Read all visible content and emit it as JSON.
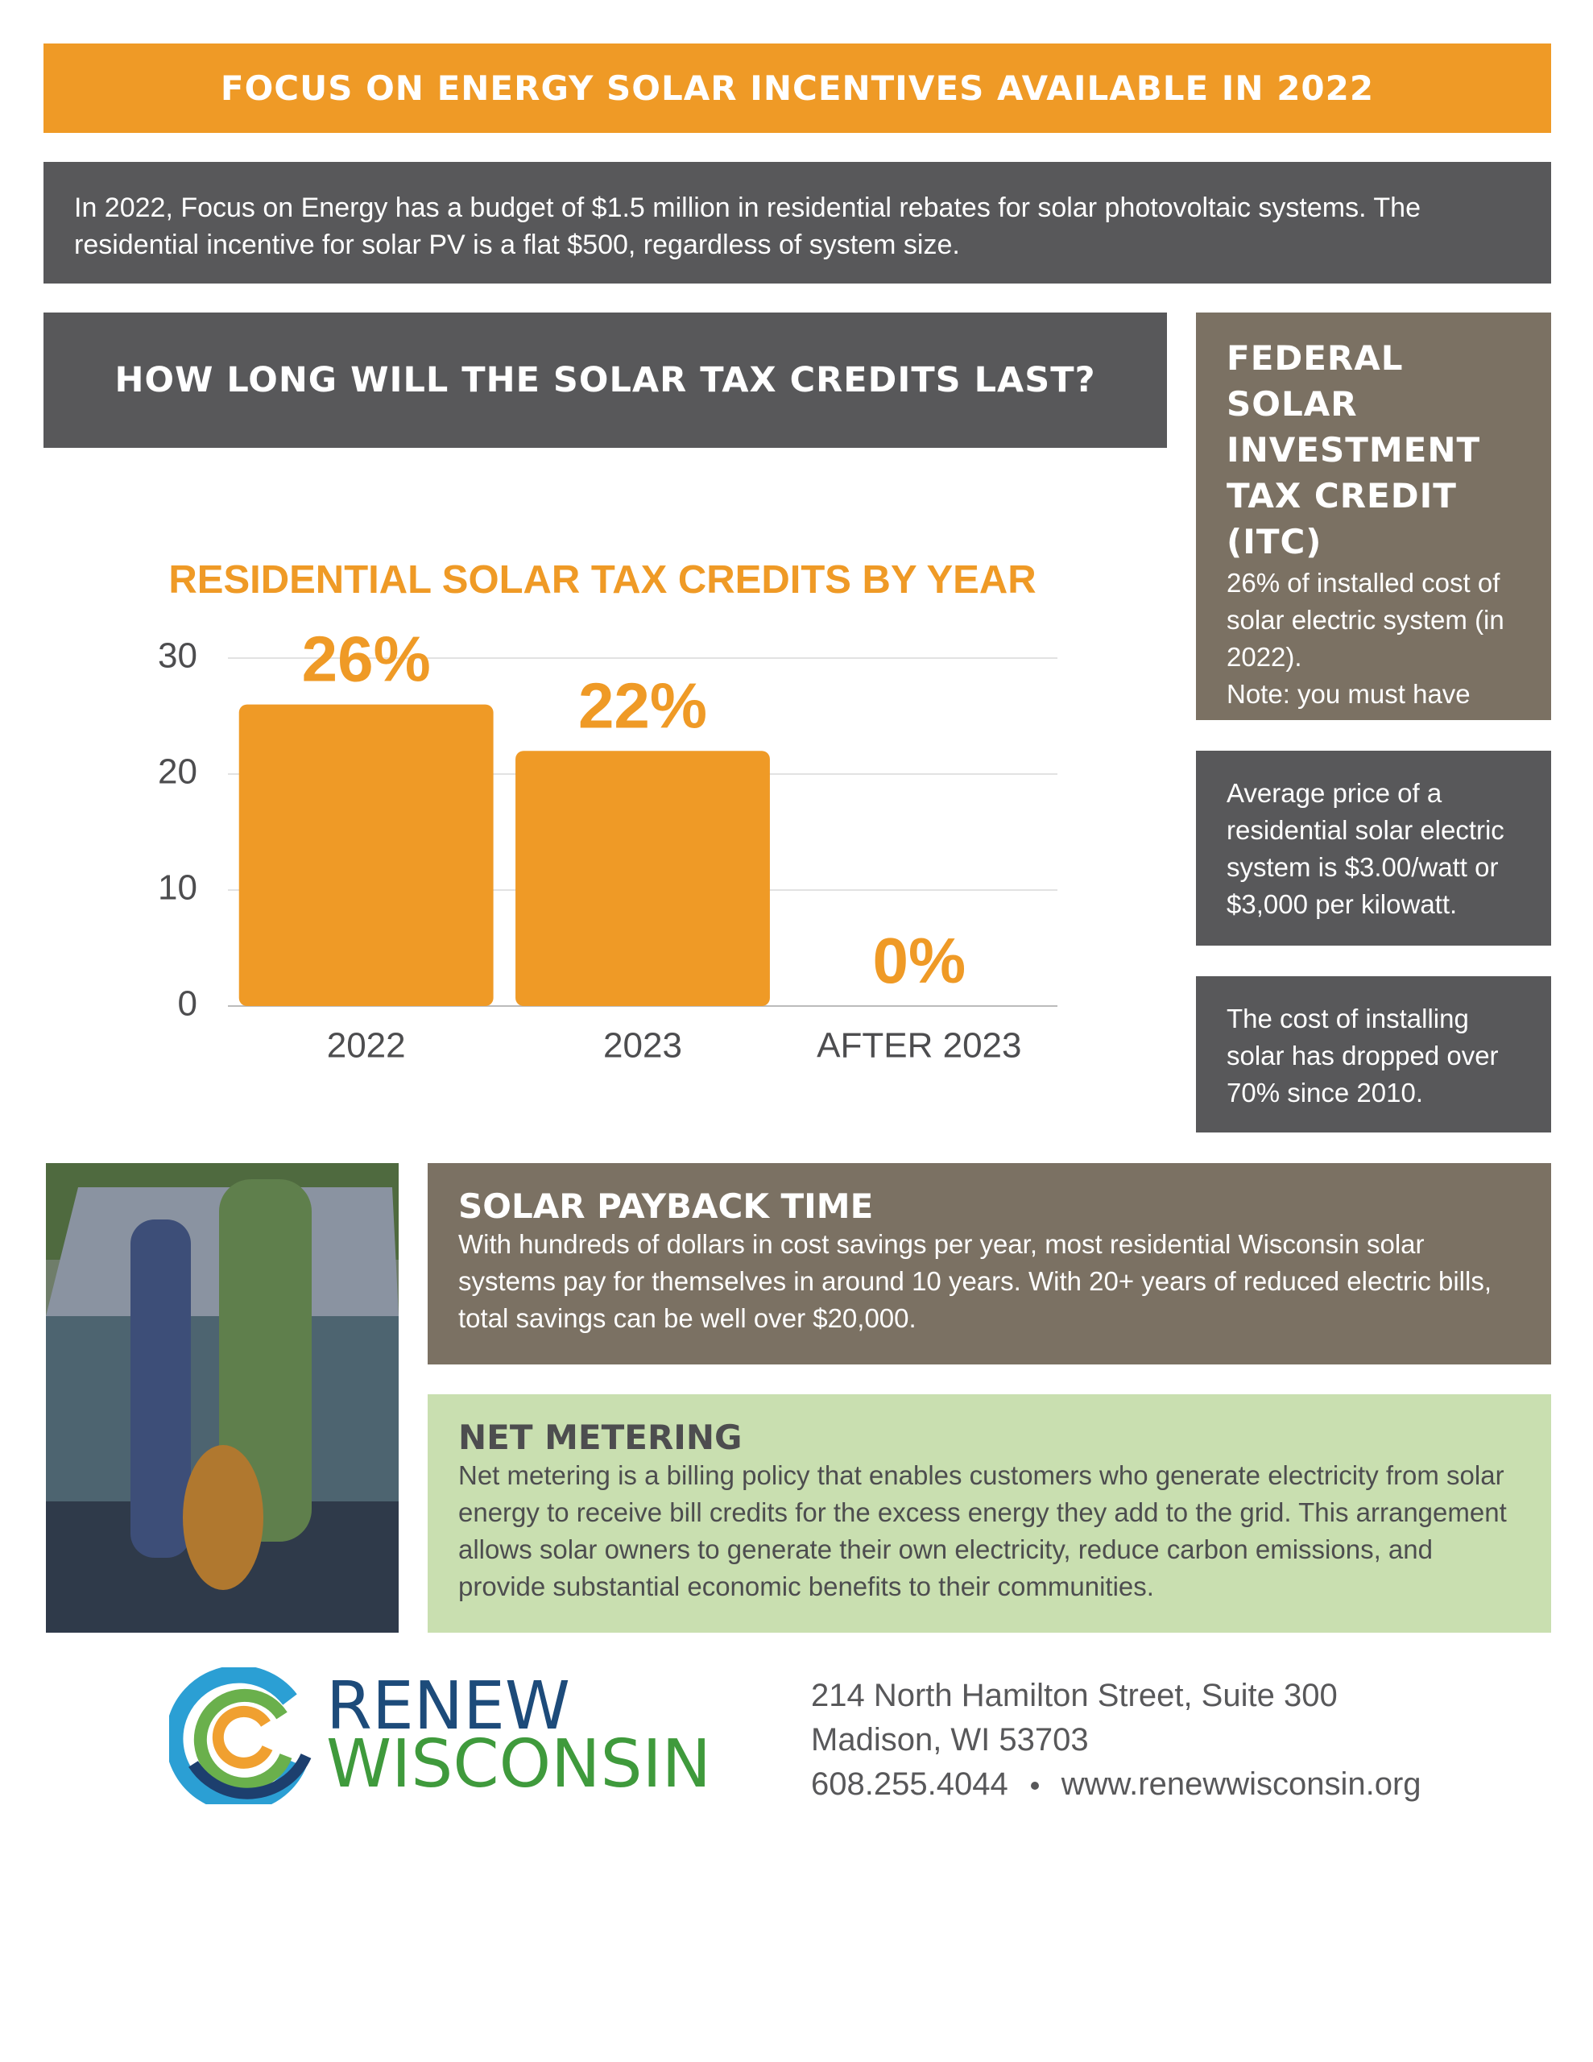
{
  "header": {
    "banner": "FOCUS ON ENERGY SOLAR INCENTIVES AVAILABLE IN 2022"
  },
  "intro": {
    "text": "In 2022, Focus on Energy has a budget of $1.5 million in residential rebates for solar photovoltaic systems. The residential incentive for solar PV is a flat $500, regardless of system size."
  },
  "section_heading": "HOW LONG WILL THE SOLAR TAX CREDITS LAST?",
  "chart_data": {
    "type": "bar",
    "title": "RESIDENTIAL SOLAR TAX CREDITS BY YEAR",
    "categories": [
      "2022",
      "2023",
      "AFTER 2023"
    ],
    "values": [
      26,
      22,
      0
    ],
    "value_labels": [
      "26%",
      "22%",
      "0%"
    ],
    "color": "#ef9a26",
    "ylim": [
      0,
      30
    ],
    "yticks": [
      0,
      10,
      20,
      30
    ],
    "grid": true
  },
  "itc": {
    "title": "FEDERAL SOLAR INVESTMENT TAX CREDIT (ITC)",
    "text": "26% of installed cost of solar electric system (in 2022).",
    "note": "Note: you must have taxable income to offset."
  },
  "price_box": {
    "text": "Average price of a residential solar electric system is $3.00/watt or $3,000 per kilowatt."
  },
  "cost_box": {
    "text": "The cost of installing solar has dropped over 70% since 2010."
  },
  "payback": {
    "title": "SOLAR PAYBACK TIME",
    "text": "With hundreds of dollars in cost savings per year, most residential Wisconsin solar systems pay for themselves in around 10 years. With 20+ years of reduced electric bills, total savings can be well over $20,000."
  },
  "net_metering": {
    "title": "NET METERING",
    "text": "Net metering is a billing policy that enables customers who generate electricity from solar energy to receive bill credits for the excess energy they add to the grid.  This arrangement allows solar owners to generate their own electricity, reduce carbon emissions, and provide substantial economic benefits to their communities."
  },
  "logo": {
    "line1": "RENEW",
    "line2": "WISCONSIN"
  },
  "address": {
    "street": "214 North Hamilton Street, Suite 300",
    "city": "Madison, WI 53703",
    "phone": "608.255.4044",
    "website": "www.renewwisconsin.org"
  }
}
